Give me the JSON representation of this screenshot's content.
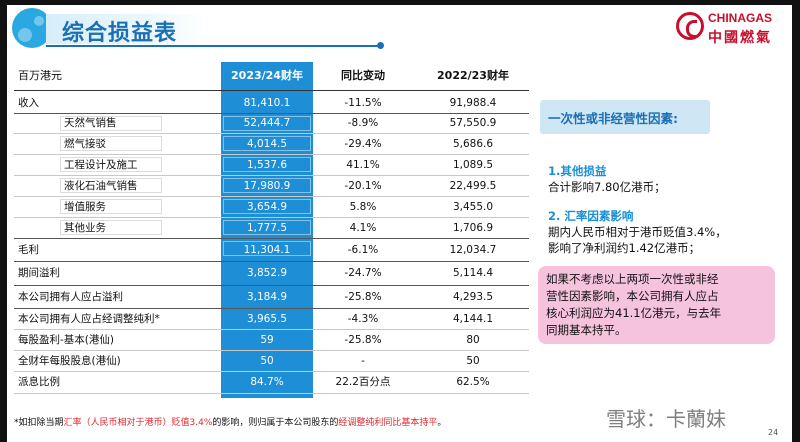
{
  "header": {
    "title": "综合损益表"
  },
  "logo": {
    "en": "CHINAGAS",
    "zh": "中國燃氣"
  },
  "table": {
    "col_label": "百万港元",
    "col_current": "2023/24财年",
    "col_yoy": "同比变动",
    "col_prev": "2022/23财年",
    "rows": [
      {
        "label": "收入",
        "cur": "81,410.1",
        "yoy": "-11.5%",
        "prev": "91,988.4"
      },
      {
        "label": "天然气销售",
        "cur": "52,444.7",
        "yoy": "-8.9%",
        "prev": "57,550.9"
      },
      {
        "label": "燃气接驳",
        "cur": "4,014.5",
        "yoy": "-29.4%",
        "prev": "5,686.6"
      },
      {
        "label": "工程设计及施工",
        "cur": "1,537.6",
        "yoy": "41.1%",
        "prev": "1,089.5"
      },
      {
        "label": "液化石油气销售",
        "cur": "17,980.9",
        "yoy": "-20.1%",
        "prev": "22,499.5"
      },
      {
        "label": "增值服务",
        "cur": "3,654.9",
        "yoy": "5.8%",
        "prev": "3,455.0"
      },
      {
        "label": "其他业务",
        "cur": "1,777.5",
        "yoy": "4.1%",
        "prev": "1,706.9"
      },
      {
        "label": "毛利",
        "cur": "11,304.1",
        "yoy": "-6.1%",
        "prev": "12,034.7"
      },
      {
        "label": "期间溢利",
        "cur": "3,852.9",
        "yoy": "-24.7%",
        "prev": "5,114.4"
      },
      {
        "label": "本公司拥有人应占溢利",
        "cur": "3,184.9",
        "yoy": "-25.8%",
        "prev": "4,293.5"
      },
      {
        "label": "本公司拥有人应占经调整纯利*",
        "cur": "3,965.5",
        "yoy": "-4.3%",
        "prev": "4,144.1"
      },
      {
        "label": "每股盈利-基本(港仙)",
        "cur": "59",
        "yoy": "-25.8%",
        "prev": "80"
      },
      {
        "label": "全财年每股股息(港仙)",
        "cur": "50",
        "yoy": "-",
        "prev": "50"
      },
      {
        "label": "派息比例",
        "cur": "84.7%",
        "yoy": "22.2百分点",
        "prev": "62.5%"
      }
    ]
  },
  "footnote": {
    "p1": "*如扣除当期",
    "p2": "汇率（人民币相对于港币）贬值3.4%",
    "p3": "的影响，则归属于本公司股东的",
    "p4": "经调整纯利同比基本持平",
    "p5": "。"
  },
  "side": {
    "title": "一次性或非经营性因素:",
    "h1": "1.其他损益",
    "t1": "合计影响7.80亿港币；",
    "h2": "2. 汇率因素影响",
    "t2a": "期内人民币相对于港币贬值3.4%，",
    "t2b": "影响了净利润约1.42亿港币；",
    "note1": "如果不考虑以上两项一次性或非经",
    "note2": "营性因素影响，本公司拥有人应占",
    "note3": "核心利润应为41.1亿港元，与去年",
    "note4": "同期基本持平。"
  },
  "watermark": "雪球：卡蘭妹",
  "page_number": "24",
  "colors": {
    "accent_blue": "#1e8fd6",
    "title_blue": "#1a6fb5",
    "brand_red": "#c8102e",
    "highlight_pink": "#f6c3dc",
    "footnote_red": "#e0282e"
  }
}
